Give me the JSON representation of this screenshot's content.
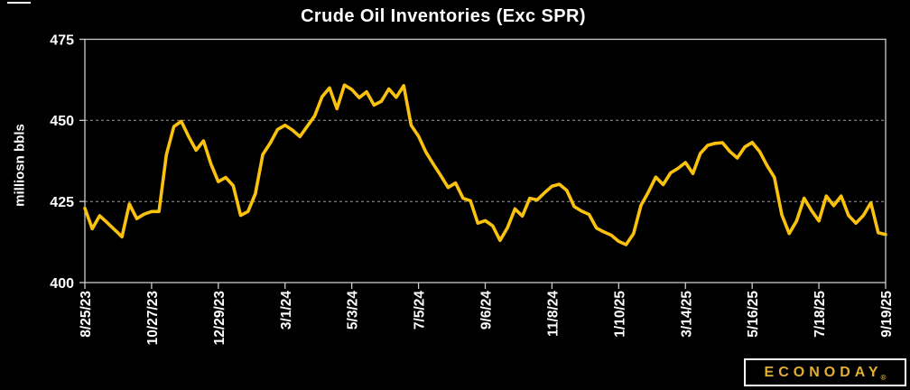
{
  "title": "Crude Oil Inventories (Exc SPR)",
  "y_axis_title": "milliosn bbls",
  "logo": {
    "text": "ECONODAY",
    "registered_mark": "®",
    "color": "#e2af30",
    "border_color": "#ffffff"
  },
  "colors": {
    "background": "#000000",
    "text": "#ffffff",
    "line": "#fbc20d",
    "frame": "#cccccc",
    "gridline": "#9a9a9a"
  },
  "chart_data": {
    "type": "line",
    "title": "Crude Oil Inventories (Exc SPR)",
    "ylabel": "milliosn bbls",
    "ylim": [
      400,
      475
    ],
    "y_ticks": [
      475,
      450,
      425,
      400
    ],
    "gridlines_at": [
      450,
      425
    ],
    "grid": "dashed horizontal at 450 and 425; solid plot frame",
    "legend": "none",
    "frequency": "weekly",
    "x_start_date": "8/25/23",
    "x_end_date": "9/19/25",
    "x_tick_every": 9,
    "x_tick_labels": [
      "8/25/23",
      "10/27/23",
      "12/29/23",
      "3/1/24",
      "5/3/24",
      "7/5/24",
      "9/6/24",
      "11/8/24",
      "1/10/25",
      "3/14/25",
      "5/16/25",
      "7/18/25",
      "9/19/25"
    ],
    "series": [
      {
        "name": "Crude Oil Inventories (Exc SPR), million barrels",
        "values": [
          422.9,
          416.6,
          420.6,
          418.5,
          416.3,
          414.1,
          424.2,
          419.7,
          421.1,
          421.9,
          421.9,
          439.4,
          448.1,
          449.7,
          445.0,
          440.8,
          443.7,
          436.6,
          431.1,
          432.4,
          429.9,
          420.7,
          421.9,
          427.4,
          439.5,
          443.0,
          447.2,
          448.5,
          447.0,
          445.0,
          448.2,
          451.4,
          457.3,
          460.0,
          453.6,
          460.9,
          459.5,
          457.0,
          458.8,
          454.7,
          455.9,
          459.7,
          457.1,
          460.7,
          448.5,
          445.1,
          440.2,
          436.5,
          433.0,
          429.3,
          430.7,
          426.0,
          425.2,
          418.3,
          419.1,
          417.5,
          413.0,
          416.9,
          422.7,
          420.5,
          426.0,
          425.5,
          427.7,
          429.7,
          430.3,
          428.4,
          423.4,
          422.0,
          421.0,
          416.8,
          415.6,
          414.6,
          412.7,
          411.7,
          415.1,
          423.8,
          427.9,
          432.5,
          430.2,
          433.8,
          435.2,
          437.0,
          433.6,
          439.8,
          442.3,
          442.9,
          443.1,
          440.4,
          438.4,
          441.8,
          443.2,
          440.4,
          436.1,
          432.4,
          420.9,
          415.1,
          419.0,
          426.0,
          422.2,
          419.0,
          426.7,
          423.7,
          426.7,
          420.7,
          418.3,
          420.7,
          424.6,
          415.4,
          414.8
        ]
      }
    ]
  }
}
